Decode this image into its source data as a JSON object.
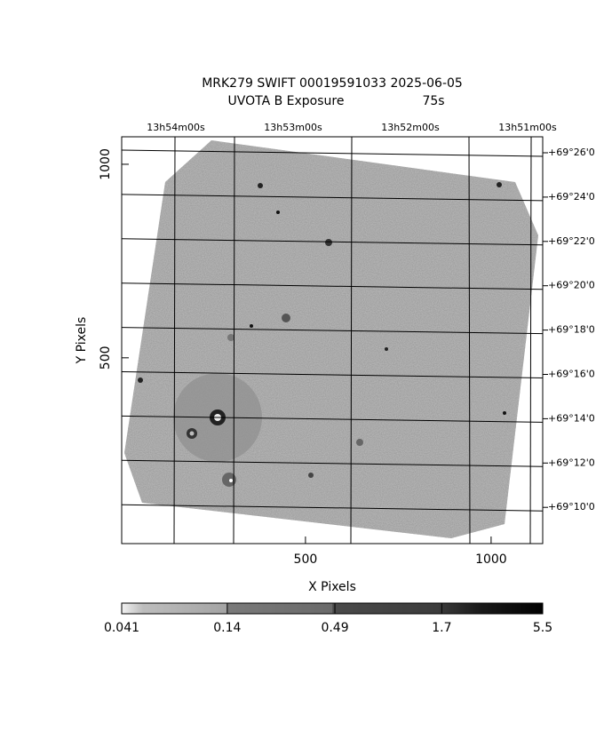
{
  "chart_data": {
    "type": "image",
    "title": "MRK279 SWIFT 00019591033 2025-06-05",
    "subtitle": "UVOTA B Exposure",
    "exposure": "75s",
    "xlabel": "X Pixels",
    "ylabel": "Y Pixels",
    "xlim": [
      5,
      1139
    ],
    "ylim": [
      20,
      1071
    ],
    "xticks": [
      500,
      1000
    ],
    "yticks": [
      500,
      1000
    ],
    "ra_labels": [
      "13h54m00s",
      "13h53m00s",
      "13h52m00s",
      "13h51m00s"
    ],
    "dec_labels": [
      "+69°26'0",
      "+69°24'0",
      "+69°22'0",
      "+69°20'0",
      "+69°18'0",
      "+69°16'0",
      "+69°14'0",
      "+69°12'0",
      "+69°10'0"
    ],
    "colorbar": {
      "lim": [
        0.041,
        5.5
      ],
      "ticks": [
        0.041,
        0.14,
        0.49,
        1.7,
        5.5
      ],
      "log": true
    }
  }
}
